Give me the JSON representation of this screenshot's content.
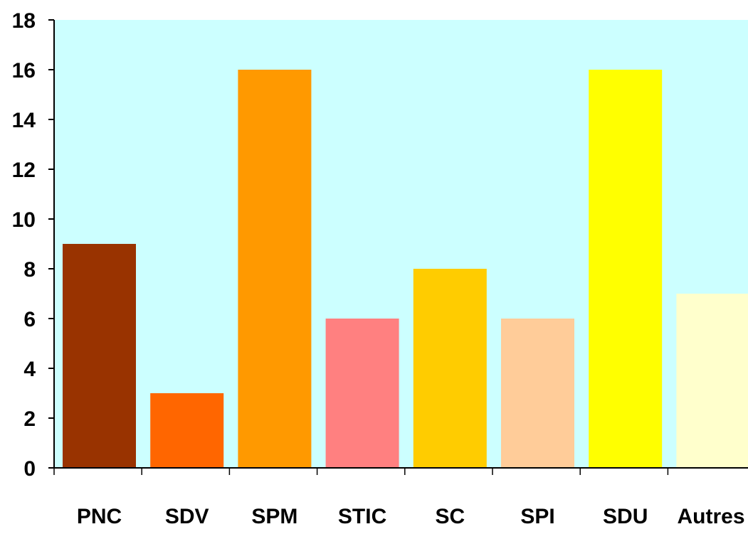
{
  "chart_data": {
    "type": "bar",
    "title": "",
    "xlabel": "",
    "ylabel": "",
    "categories": [
      "PNC",
      "SDV",
      "SPM",
      "STIC",
      "SC",
      "SPI",
      "SDU",
      "Autres"
    ],
    "values": [
      9,
      3,
      16,
      6,
      8,
      6,
      16,
      7
    ],
    "bar_colors": [
      "#993300",
      "#FF6600",
      "#FF9900",
      "#FF8080",
      "#FFCC00",
      "#FFCC99",
      "#FFFF00",
      "#FFFFCC"
    ],
    "ylim": [
      0,
      18
    ],
    "yticks": [
      "0",
      "2",
      "4",
      "6",
      "8",
      "10",
      "12",
      "14",
      "16",
      "18"
    ],
    "grid": false,
    "legend": "none",
    "plot_background": "#CCFFFF"
  }
}
